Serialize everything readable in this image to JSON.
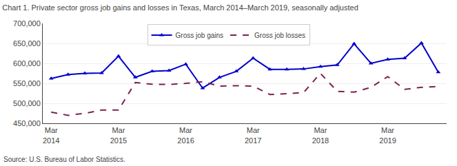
{
  "chart_data": {
    "type": "line",
    "title": "Chart 1. Private sector gross job gains and losses in Texas, March 2014–March 2019, seasonally adjusted",
    "annotations": [
      {
        "text": "Source: U.S. Bureau of Labor Statistics."
      }
    ],
    "categories": [
      "Mar\n2014",
      null,
      null,
      null,
      "Mar\n2015",
      null,
      null,
      null,
      "Mar\n2016",
      null,
      null,
      null,
      "Mar\n2017",
      null,
      null,
      null,
      "Mar\n2018",
      null,
      null,
      null,
      "Mar\n2019",
      null,
      null,
      null
    ],
    "series": [
      {
        "name": "Gross job gains",
        "color": "#0000cc",
        "marker": "triangle-up",
        "line_style": "solid",
        "values": [
          562000,
          572000,
          575000,
          576000,
          618000,
          565000,
          580000,
          582000,
          598000,
          538000,
          565000,
          580000,
          613000,
          585000,
          585000,
          586000,
          592000,
          596000,
          649000,
          600000,
          610000,
          613000,
          651000,
          578000
        ]
      },
      {
        "name": "Gross job losses",
        "color": "#7b2050",
        "marker": "none",
        "line_style": "dashed",
        "values": [
          478000,
          470000,
          475000,
          483000,
          483000,
          552000,
          548000,
          547000,
          550000,
          554000,
          543000,
          544000,
          543000,
          522000,
          524000,
          527000,
          575000,
          530000,
          528000,
          540000,
          567000,
          535000,
          540000,
          542000
        ]
      }
    ],
    "ylim": [
      450000,
      700000
    ],
    "yticks": [
      {
        "value": 450000,
        "label": "450,000"
      },
      {
        "value": 500000,
        "label": "500,000"
      },
      {
        "value": 550000,
        "label": "550,000"
      },
      {
        "value": 600000,
        "label": "600,000"
      },
      {
        "value": 650000,
        "label": "650,000"
      },
      {
        "value": 700000,
        "label": "700,000"
      }
    ],
    "grid": true,
    "legend": "upper center"
  }
}
